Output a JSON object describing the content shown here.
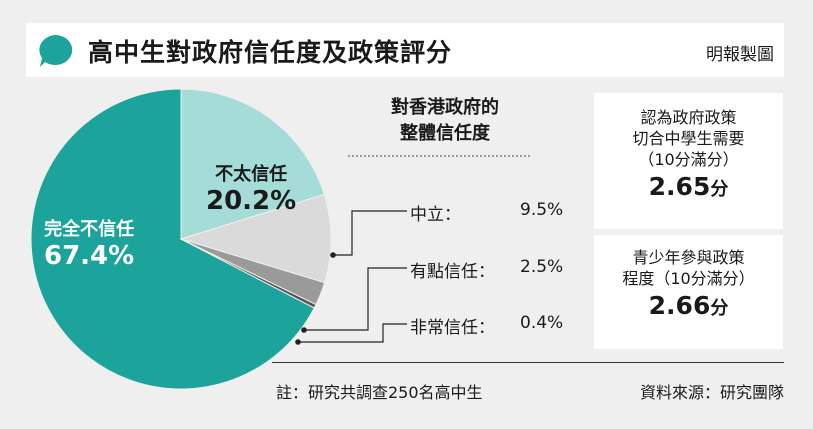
{
  "header": {
    "title": "高中生對政府信任度及政策評分",
    "credit": "明報製圖",
    "bubble_icon": "speech-bubble-icon"
  },
  "colors": {
    "complete_distrust": "#1ba39c",
    "low_trust": "#a6dcd7",
    "neutral": "#dadada",
    "some_trust": "#9a9a9a",
    "very_trust": "#555555"
  },
  "chart_data": {
    "type": "pie",
    "title": "對香港政府的整體信任度",
    "title_lines": [
      "對香港政府的",
      "整體信任度"
    ],
    "slices": [
      {
        "name": "完全不信任",
        "value": 67.4,
        "label": "67.4%"
      },
      {
        "name": "不太信任",
        "value": 20.2,
        "label": "20.2%"
      },
      {
        "name": "中立",
        "value": 9.5,
        "label": "9.5%"
      },
      {
        "name": "有點信任",
        "value": 2.5,
        "label": "2.5%"
      },
      {
        "name": "非常信任",
        "value": 0.4,
        "label": "0.4%"
      }
    ],
    "callouts": [
      {
        "label": "中立：",
        "value": "9.5%"
      },
      {
        "label": "有點信任：",
        "value": "2.5%"
      },
      {
        "label": "非常信任：",
        "value": "0.4%"
      }
    ]
  },
  "panels": [
    {
      "lines": [
        "認為政府政策",
        "切合中學生需要",
        "（10分滿分）"
      ],
      "value": "2.65",
      "unit": "分"
    },
    {
      "lines": [
        "青少年參與政策",
        "程度（10分滿分）"
      ],
      "value": "2.66",
      "unit": "分"
    }
  ],
  "footer": {
    "note": "註：研究共調查250名高中生",
    "source": "資料來源：研究團隊"
  }
}
